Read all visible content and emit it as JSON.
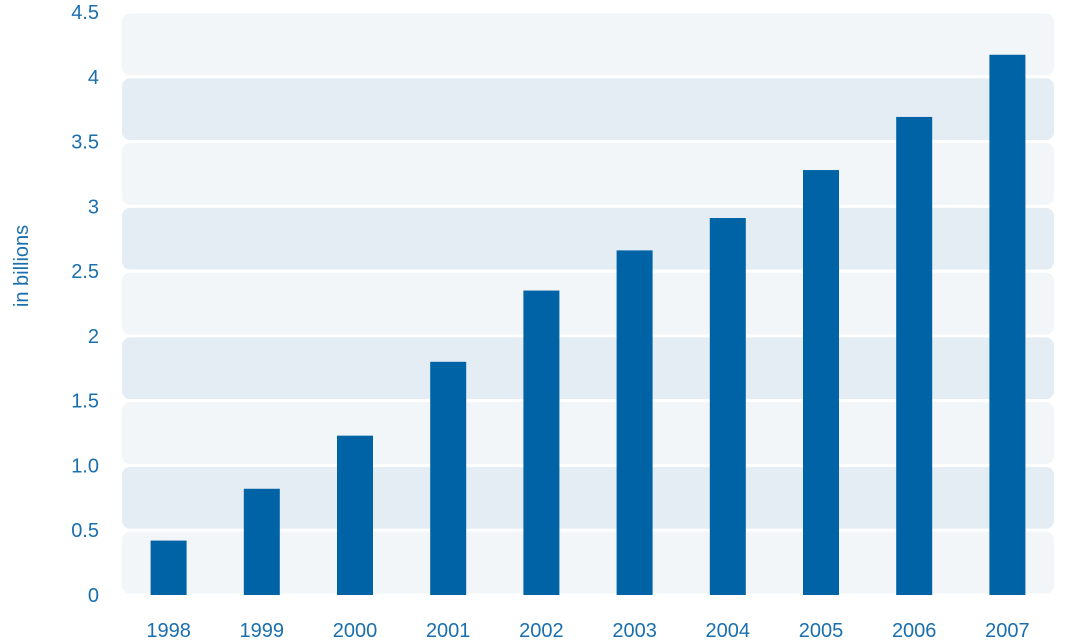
{
  "chart_data": {
    "type": "bar",
    "title": "",
    "xlabel": "",
    "ylabel": "in billions",
    "categories": [
      "1998",
      "1999",
      "2000",
      "2001",
      "2002",
      "2003",
      "2004",
      "2005",
      "2006",
      "2007"
    ],
    "values": [
      0.42,
      0.82,
      1.23,
      1.8,
      2.35,
      2.66,
      2.91,
      3.28,
      3.69,
      4.17
    ],
    "ylim": [
      0,
      4.5
    ],
    "yticks": [
      "0",
      "0.5",
      "1.0",
      "1.5",
      "2",
      "2.5",
      "3",
      "3.5",
      "4",
      "4.5"
    ],
    "grid": "alternating horizontal bands",
    "legend": "none",
    "colors": {
      "bar": "#0063a6",
      "band_light": "#f2f6f9",
      "band_dark": "#e5edf4",
      "text": "#1a6fae"
    }
  }
}
